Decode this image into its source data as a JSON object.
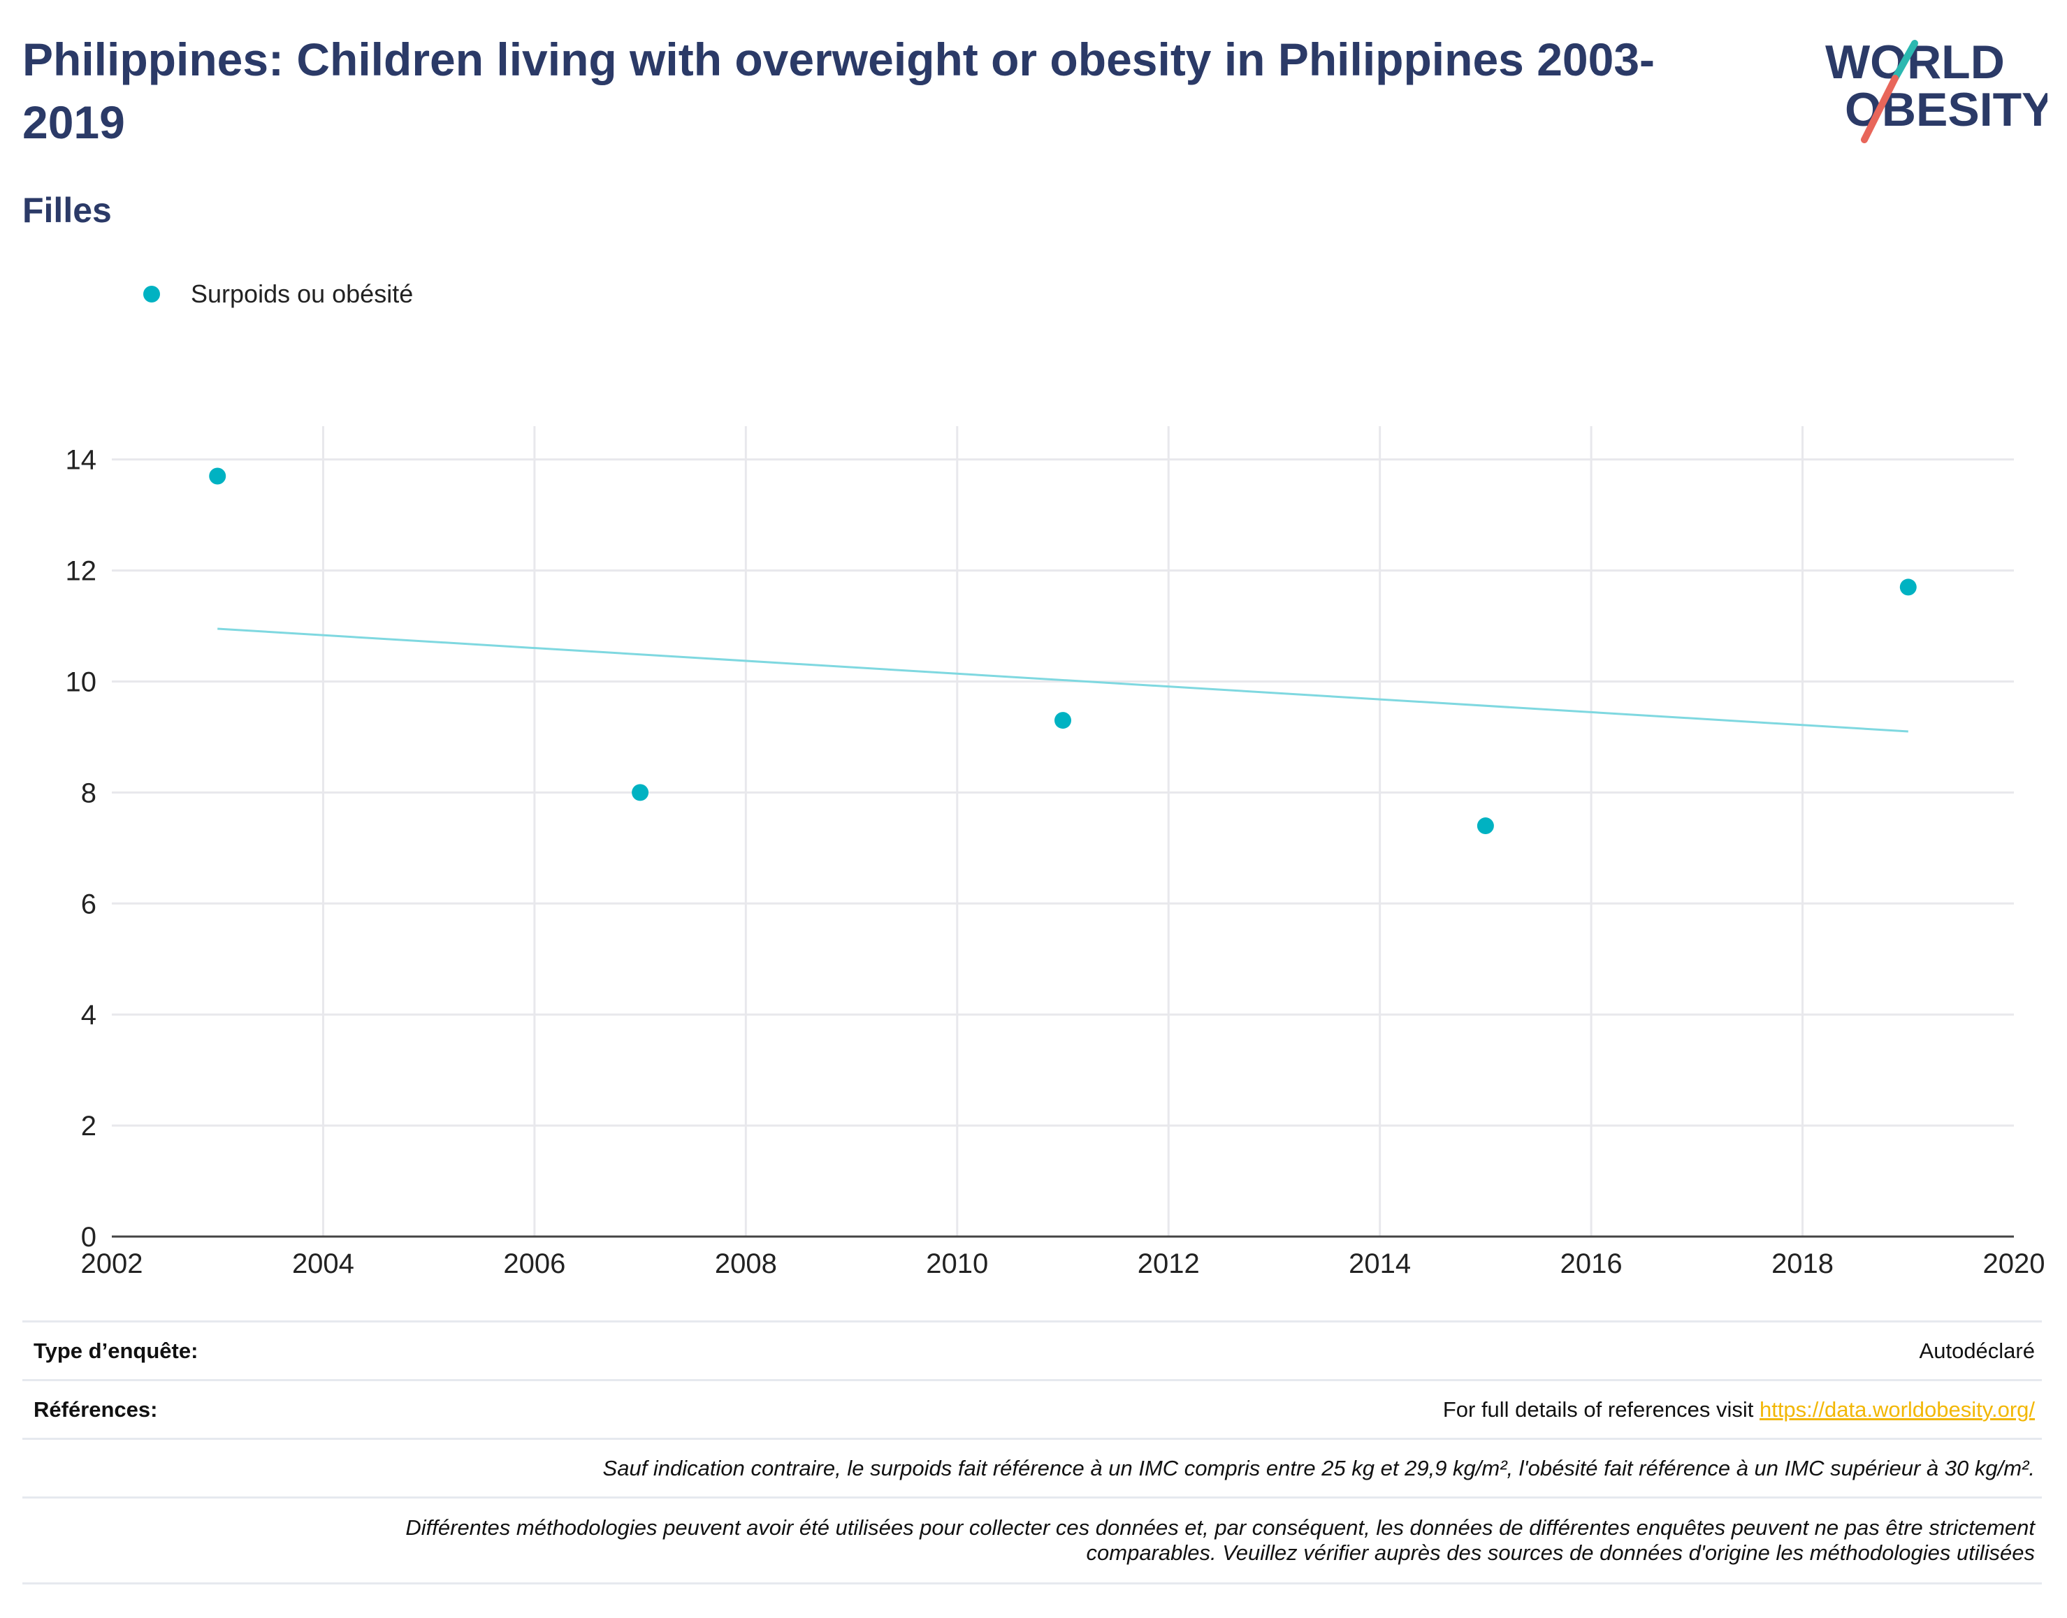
{
  "header": {
    "title": "Philippines: Children living with overweight or obesity in Philippines 2003-2019",
    "subtitle": "Filles"
  },
  "logo": {
    "line1": "WORLD",
    "line2": "OBESITY"
  },
  "colors": {
    "accent": "#00b2c2",
    "trend": "#7fd8e0",
    "title": "#2b3a67",
    "link": "#f2b705"
  },
  "legend": {
    "label": "Surpoids ou obésité"
  },
  "chart_data": {
    "type": "scatter",
    "series": [
      {
        "name": "Surpoids ou obésité",
        "x": [
          2003,
          2007,
          2011,
          2015,
          2019
        ],
        "y": [
          13.7,
          8.0,
          9.3,
          7.4,
          11.7
        ]
      }
    ],
    "trendline": {
      "x": [
        2003,
        2019
      ],
      "y": [
        10.95,
        9.1
      ]
    },
    "xlim": [
      2002,
      2020
    ],
    "ylim": [
      0,
      14.6
    ],
    "xticks": [
      2002,
      2004,
      2006,
      2008,
      2010,
      2012,
      2014,
      2016,
      2018,
      2020
    ],
    "yticks": [
      0,
      2,
      4,
      6,
      8,
      10,
      12,
      14
    ],
    "grid": true,
    "legend_position": "top-left"
  },
  "footer": {
    "survey_type_label": "Type d’enquête:",
    "survey_type_value": "Autodéclaré",
    "references_label": "Références:",
    "references_text": "For full details of references visit",
    "references_link": "https://data.worldobesity.org/",
    "note1": "Sauf indication contraire, le surpoids fait référence à un IMC compris entre 25 kg et 29,9 kg/m², l'obésité fait référence à un IMC supérieur à 30 kg/m².",
    "note2_line1": "Différentes méthodologies peuvent avoir été utilisées pour collecter ces données et, par conséquent, les données de différentes enquêtes peuvent ne pas être strictement",
    "note2_line2": "comparables. Veuillez vérifier auprès des sources de données d'origine les méthodologies utilisées"
  }
}
